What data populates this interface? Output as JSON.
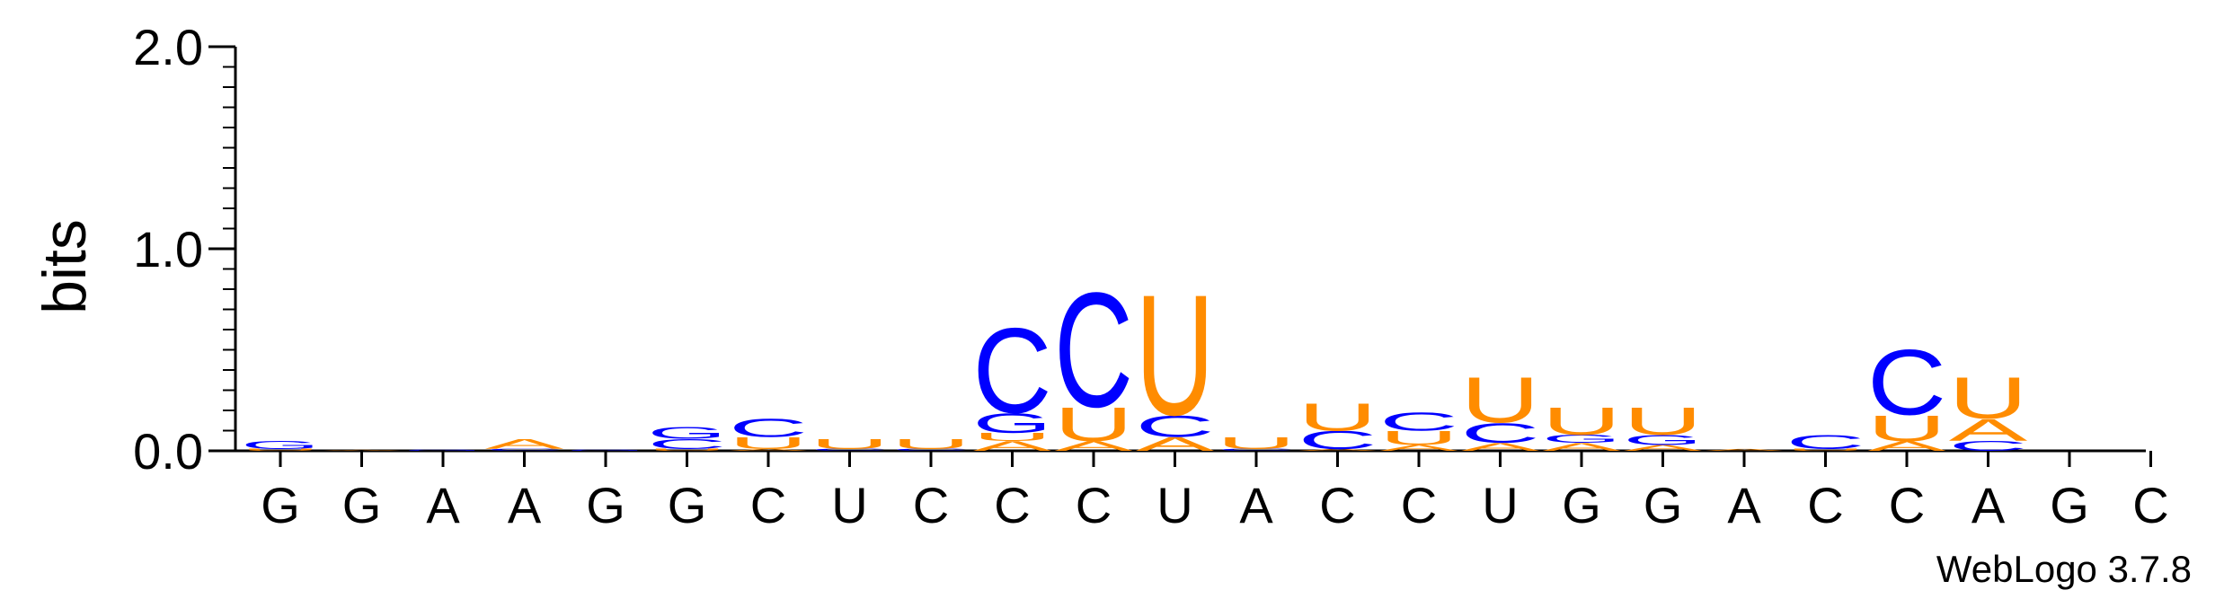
{
  "chart_data": {
    "type": "sequence-logo",
    "title": "",
    "ylabel": "bits",
    "ylim": [
      0,
      2.0
    ],
    "yticks": [
      {
        "value": 0.0,
        "label": "0.0"
      },
      {
        "value": 1.0,
        "label": "1.0"
      },
      {
        "value": 2.0,
        "label": "2.0"
      }
    ],
    "colors": {
      "A": "#FF8C00",
      "U": "#FF8C00",
      "C": "#0000FF",
      "G": "#0000FF"
    },
    "positions": [
      {
        "label": "G",
        "letters": [
          {
            "l": "U",
            "h": 0.01
          },
          {
            "l": "G",
            "h": 0.04
          }
        ]
      },
      {
        "label": "G",
        "letters": [
          {
            "l": "A",
            "h": 0.005
          }
        ]
      },
      {
        "label": "A",
        "letters": [
          {
            "l": "G",
            "h": 0.005
          }
        ]
      },
      {
        "label": "A",
        "letters": [
          {
            "l": "C",
            "h": 0.01
          },
          {
            "l": "A",
            "h": 0.05
          }
        ]
      },
      {
        "label": "G",
        "letters": [
          {
            "l": "G",
            "h": 0.005
          }
        ]
      },
      {
        "label": "G",
        "letters": [
          {
            "l": "U",
            "h": 0.01
          },
          {
            "l": "C",
            "h": 0.05
          },
          {
            "l": "G",
            "h": 0.06
          }
        ]
      },
      {
        "label": "C",
        "letters": [
          {
            "l": "A",
            "h": 0.01
          },
          {
            "l": "U",
            "h": 0.06
          },
          {
            "l": "C",
            "h": 0.09
          }
        ]
      },
      {
        "label": "U",
        "letters": [
          {
            "l": "C",
            "h": 0.01
          },
          {
            "l": "U",
            "h": 0.05
          }
        ]
      },
      {
        "label": "C",
        "letters": [
          {
            "l": "C",
            "h": 0.01
          },
          {
            "l": "U",
            "h": 0.05
          }
        ]
      },
      {
        "label": "C",
        "letters": [
          {
            "l": "A",
            "h": 0.05
          },
          {
            "l": "U",
            "h": 0.04
          },
          {
            "l": "G",
            "h": 0.1
          },
          {
            "l": "C",
            "h": 0.43
          }
        ]
      },
      {
        "label": "C",
        "letters": [
          {
            "l": "A",
            "h": 0.05
          },
          {
            "l": "U",
            "h": 0.17
          },
          {
            "l": "C",
            "h": 0.58
          }
        ]
      },
      {
        "label": "U",
        "letters": [
          {
            "l": "A",
            "h": 0.07
          },
          {
            "l": "C",
            "h": 0.11
          },
          {
            "l": "U",
            "h": 0.61
          }
        ]
      },
      {
        "label": "A",
        "letters": [
          {
            "l": "C",
            "h": 0.01
          },
          {
            "l": "U",
            "h": 0.06
          }
        ]
      },
      {
        "label": "C",
        "letters": [
          {
            "l": "A",
            "h": 0.01
          },
          {
            "l": "C",
            "h": 0.09
          },
          {
            "l": "U",
            "h": 0.14
          }
        ]
      },
      {
        "label": "C",
        "letters": [
          {
            "l": "A",
            "h": 0.03
          },
          {
            "l": "U",
            "h": 0.07
          },
          {
            "l": "C",
            "h": 0.09
          }
        ]
      },
      {
        "label": "U",
        "letters": [
          {
            "l": "A",
            "h": 0.04
          },
          {
            "l": "C",
            "h": 0.1
          },
          {
            "l": "U",
            "h": 0.23
          }
        ]
      },
      {
        "label": "G",
        "letters": [
          {
            "l": "A",
            "h": 0.04
          },
          {
            "l": "G",
            "h": 0.04
          },
          {
            "l": "U",
            "h": 0.14
          }
        ]
      },
      {
        "label": "G",
        "letters": [
          {
            "l": "A",
            "h": 0.03
          },
          {
            "l": "G",
            "h": 0.05
          },
          {
            "l": "U",
            "h": 0.14
          }
        ]
      },
      {
        "label": "A",
        "letters": [
          {
            "l": "A",
            "h": 0.01
          }
        ]
      },
      {
        "label": "C",
        "letters": [
          {
            "l": "U",
            "h": 0.01
          },
          {
            "l": "C",
            "h": 0.07
          }
        ]
      },
      {
        "label": "C",
        "letters": [
          {
            "l": "A",
            "h": 0.05
          },
          {
            "l": "U",
            "h": 0.13
          },
          {
            "l": "C",
            "h": 0.33
          }
        ]
      },
      {
        "label": "A",
        "letters": [
          {
            "l": "C",
            "h": 0.05
          },
          {
            "l": "A",
            "h": 0.11
          },
          {
            "l": "U",
            "h": 0.21
          }
        ]
      },
      {
        "label": "G",
        "letters": []
      },
      {
        "label": "C",
        "letters": []
      }
    ]
  },
  "credit": "WebLogo 3.7.8"
}
